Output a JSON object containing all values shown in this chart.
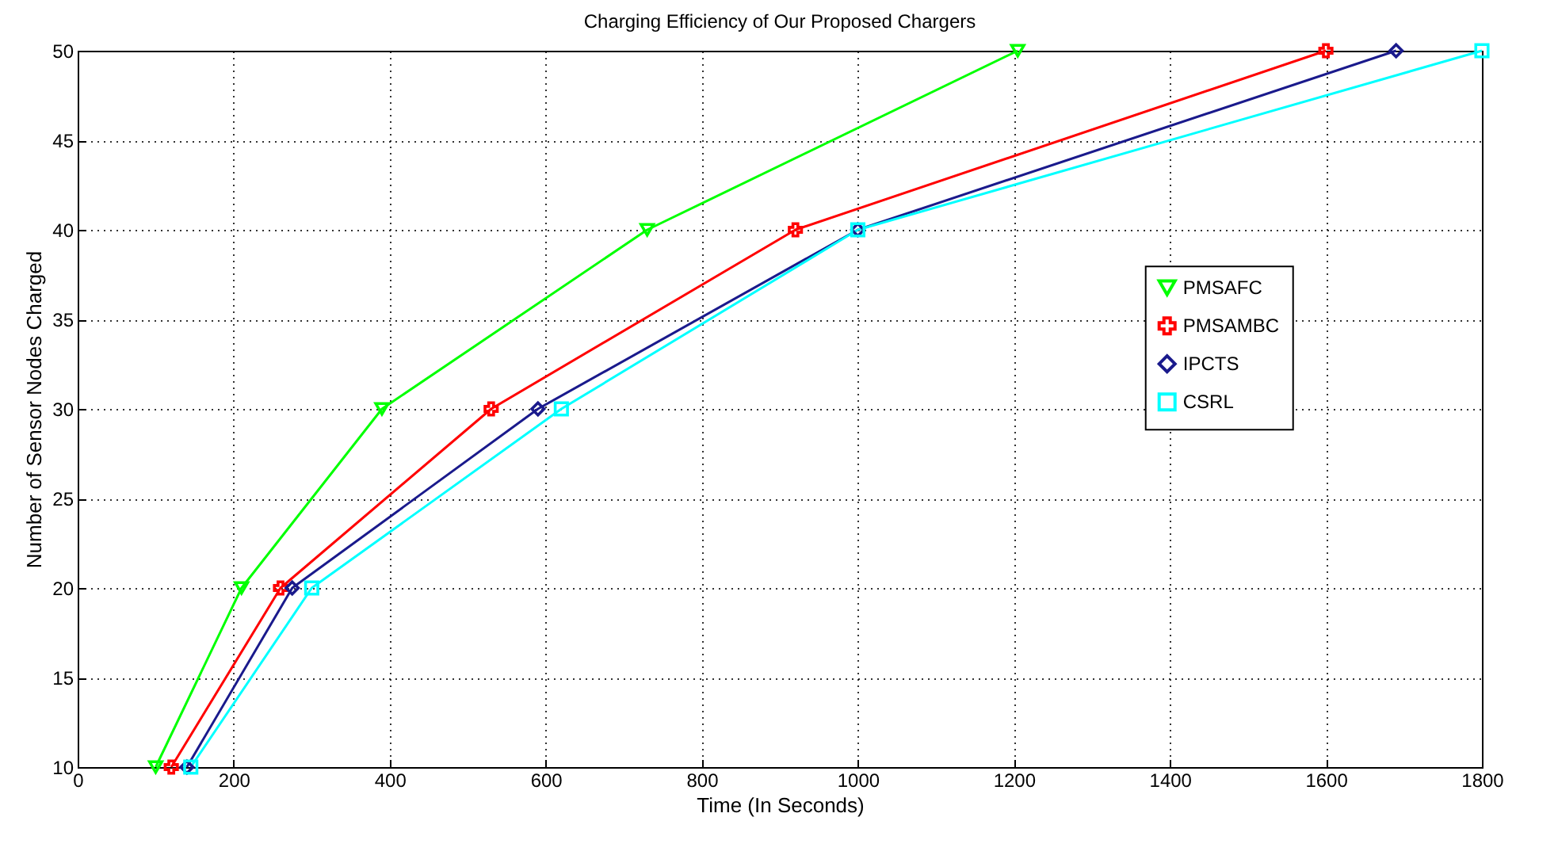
{
  "chart_data": {
    "type": "line",
    "title": "Charging Efficiency of Our Proposed Chargers",
    "xlabel": "Time (In Seconds)",
    "ylabel": "Number of Sensor Nodes Charged",
    "xlim": [
      0,
      1800
    ],
    "xticks": [
      0,
      200,
      400,
      600,
      800,
      1000,
      1200,
      1400,
      1600,
      1800
    ],
    "ylim": [
      10,
      50
    ],
    "yticks": [
      10,
      15,
      20,
      25,
      30,
      35,
      40,
      45,
      50
    ],
    "grid": true,
    "legend": "right",
    "line_style": "solid",
    "series": [
      {
        "name": "PMSAFC",
        "color": "#00ff00",
        "marker": "triangle",
        "x": [
          100,
          210,
          390,
          730,
          1205
        ],
        "values": [
          10,
          20,
          30,
          40,
          50
        ]
      },
      {
        "name": "PMSAMBC",
        "color": "#ff0000",
        "marker": "cross",
        "x": [
          120,
          260,
          530,
          920,
          1600
        ],
        "values": [
          10,
          20,
          30,
          40,
          50
        ]
      },
      {
        "name": "IPCTS",
        "color": "#1a1a8c",
        "marker": "diamond",
        "x": [
          140,
          275,
          590,
          1000,
          1690
        ],
        "values": [
          10,
          20,
          30,
          40,
          50
        ]
      },
      {
        "name": "CSRL",
        "color": "#00ffff",
        "marker": "square",
        "x": [
          145,
          300,
          620,
          1000,
          1800
        ],
        "values": [
          10,
          20,
          30,
          40,
          50
        ]
      }
    ]
  }
}
